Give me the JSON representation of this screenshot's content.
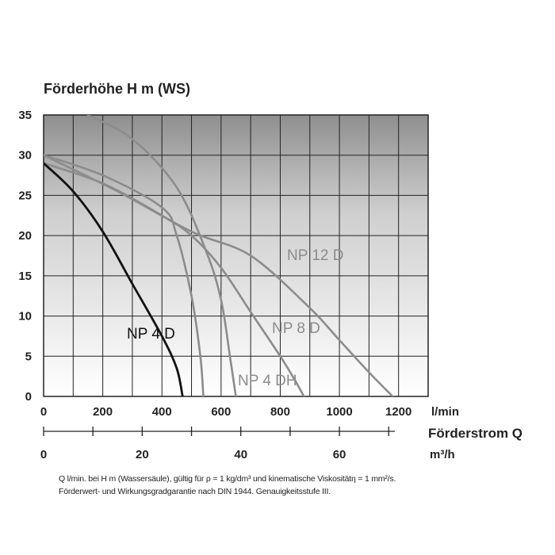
{
  "chart_data": {
    "type": "line",
    "ylabel": "Förderhöhe H m (WS)",
    "ylim": [
      0,
      35
    ],
    "y_ticks": [
      "0",
      "5",
      "10",
      "15",
      "20",
      "25",
      "30",
      "35"
    ],
    "x_primary": {
      "unit": "l/min",
      "xlim": [
        0,
        1300
      ],
      "ticks": [
        "0",
        "200",
        "400",
        "600",
        "800",
        "1000",
        "1200"
      ],
      "tick_values": [
        0,
        200,
        400,
        600,
        800,
        1000,
        1200
      ]
    },
    "x_secondary": {
      "title": "Förderstrom Q",
      "unit": "m³/h",
      "ticks": [
        "0",
        "20",
        "40",
        "60"
      ],
      "tick_values": [
        0,
        20,
        40,
        60
      ]
    },
    "grid": true,
    "series": [
      {
        "name": "NP 4 D",
        "color": "#111111",
        "points": [
          [
            0,
            29
          ],
          [
            100,
            25.5
          ],
          [
            200,
            20.5
          ],
          [
            300,
            14
          ],
          [
            400,
            7.5
          ],
          [
            450,
            3.5
          ],
          [
            470,
            0
          ]
        ]
      },
      {
        "name": "NP 4 DH",
        "color": "#8c8c8c",
        "points": [
          [
            0,
            30
          ],
          [
            200,
            27.5
          ],
          [
            400,
            23.5
          ],
          [
            450,
            20
          ],
          [
            500,
            12.5
          ],
          [
            530,
            5
          ],
          [
            540,
            0
          ]
        ]
      },
      {
        "name": "NP 8 D",
        "color": "#8c8c8c",
        "points": [
          [
            0,
            29
          ],
          [
            200,
            26.5
          ],
          [
            400,
            22.5
          ],
          [
            500,
            20
          ],
          [
            600,
            16
          ],
          [
            700,
            10.5
          ],
          [
            800,
            5
          ],
          [
            850,
            2
          ],
          [
            880,
            0
          ]
        ]
      },
      {
        "name": "NP 12 D",
        "color": "#8c8c8c",
        "points": [
          [
            0,
            30
          ],
          [
            250,
            25.5
          ],
          [
            500,
            20.5
          ],
          [
            700,
            17.5
          ],
          [
            900,
            11
          ],
          [
            1000,
            7
          ],
          [
            1100,
            3
          ],
          [
            1180,
            0
          ]
        ]
      },
      {
        "name": "",
        "color": "#8c8c8c",
        "points": [
          [
            150,
            35
          ],
          [
            300,
            32
          ],
          [
            450,
            26
          ],
          [
            550,
            18
          ],
          [
            600,
            12
          ],
          [
            630,
            5
          ],
          [
            650,
            0
          ]
        ]
      }
    ],
    "series_labels": [
      "NP 4 D",
      "NP 4 DH",
      "NP 8 D",
      "NP 12 D"
    ]
  },
  "footnote": {
    "line1": "Q l/min. bei H m (Wassersäule), gültig für ρ = 1 kg/dm³ und kinematische Viskositätη = 1 mm²/s.",
    "line2": "Förderwert- und Wirkungsgradgarantie nach DIN 1944. Genauigkeitsstufe III."
  }
}
